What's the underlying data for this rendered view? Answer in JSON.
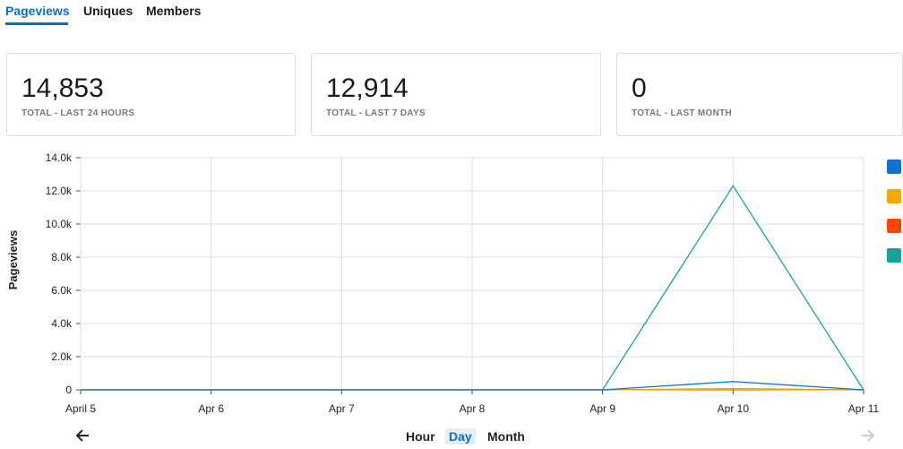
{
  "tabs": [
    "Pageviews",
    "Uniques",
    "Members"
  ],
  "stats": [
    {
      "value": "14,853",
      "label": "TOTAL - LAST 24 HOURS"
    },
    {
      "value": "12,914",
      "label": "TOTAL - LAST 7 DAYS"
    },
    {
      "value": "0",
      "label": "TOTAL - LAST MONTH"
    }
  ],
  "chart_data": {
    "type": "line",
    "y_label": "Pageviews",
    "categories": [
      "April 5",
      "Apr 6",
      "Apr 7",
      "Apr 8",
      "Apr 9",
      "Apr 10",
      "Apr 11"
    ],
    "series": [
      {
        "color": "#0a74d0",
        "values": [
          0,
          0,
          0,
          0,
          0,
          500,
          0
        ]
      },
      {
        "color": "#f5a800",
        "values": [
          0,
          0,
          0,
          0,
          0,
          30,
          0
        ]
      },
      {
        "color": "#ff4500",
        "values": [
          0,
          0,
          0,
          0,
          0,
          60,
          0
        ]
      },
      {
        "color": "#14a39a",
        "values": [
          0,
          0,
          0,
          0,
          0,
          12300,
          0
        ]
      }
    ],
    "ylim": [
      0,
      14000
    ],
    "yticks": [
      0,
      {
        "value": 2000,
        "label": "2.0k"
      },
      {
        "value": 4000,
        "label": "4.0k"
      },
      {
        "value": 6000,
        "label": "6.0k"
      },
      {
        "value": 8000,
        "label": "8.0k"
      },
      {
        "value": 10000,
        "label": "10.0k"
      },
      {
        "value": 12000,
        "label": "12.0k"
      },
      {
        "value": 14000,
        "label": "14.0k"
      }
    ],
    "grid": true
  },
  "granularity": [
    "Hour",
    "Day",
    "Month"
  ]
}
